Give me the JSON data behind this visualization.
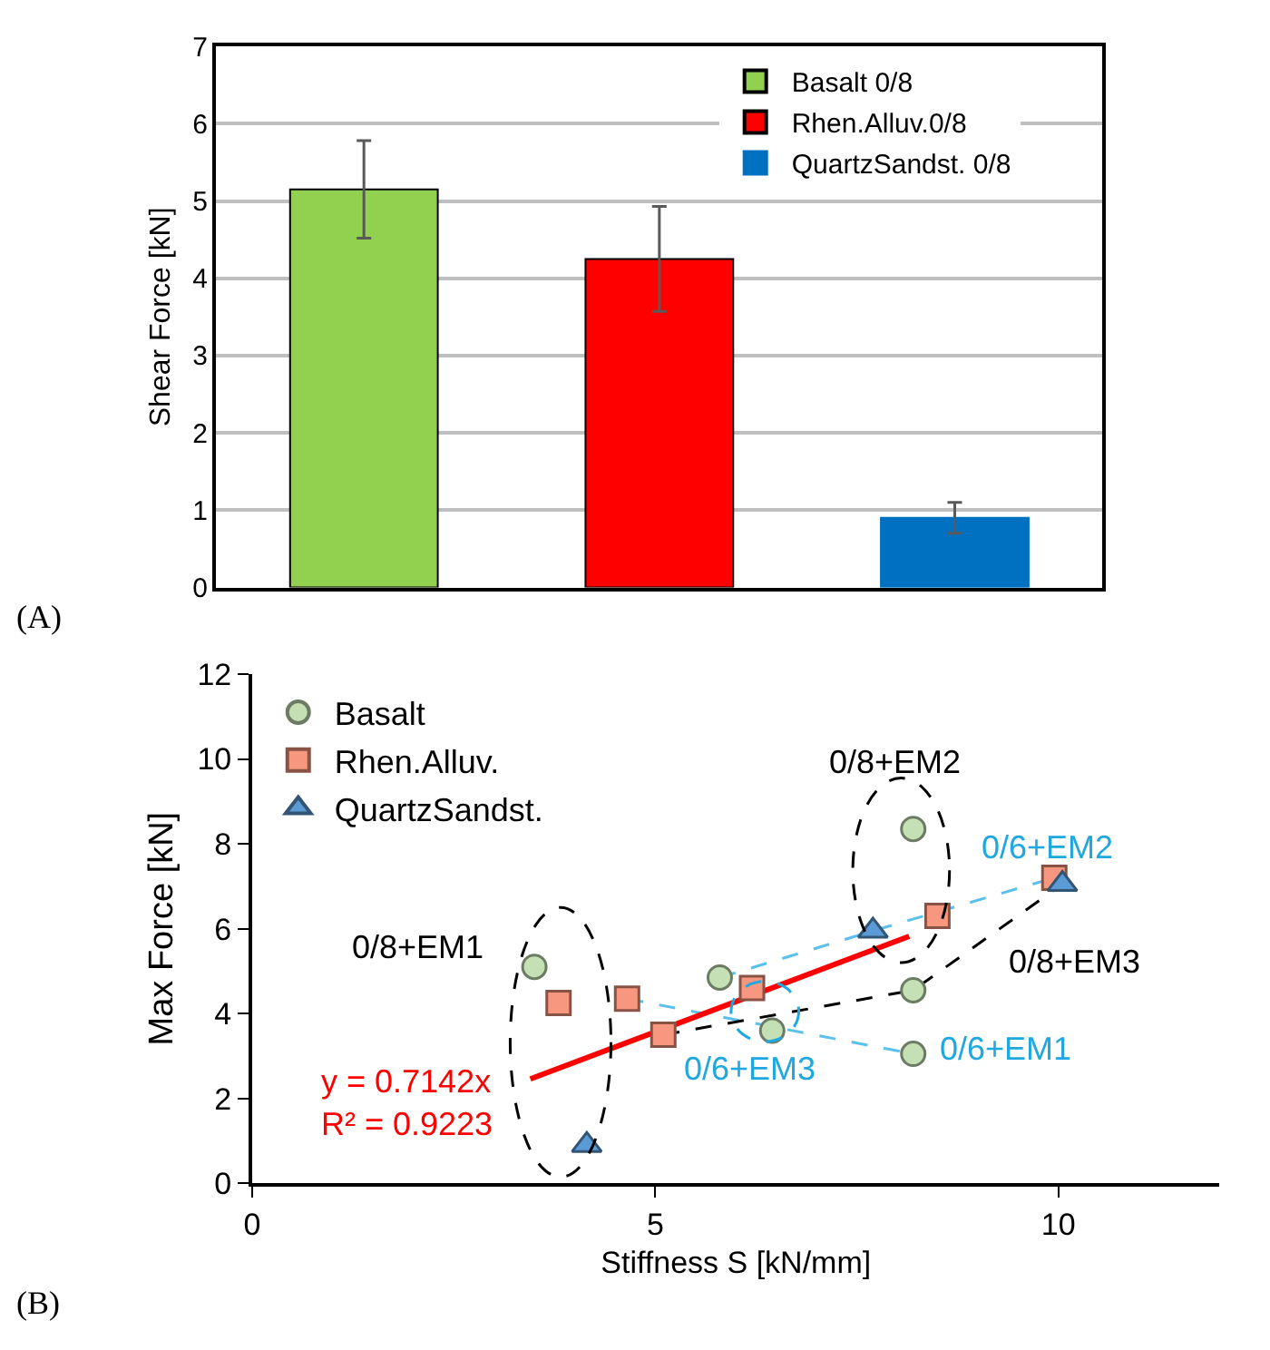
{
  "chart_data": [
    {
      "type": "bar",
      "ylabel": "Shear Force [kN]",
      "categories": [
        null,
        null,
        null
      ],
      "series": [
        {
          "name": "Basalt 0/8",
          "color": "#92d050",
          "values": [
            5.15,
            null,
            null
          ],
          "errors": [
            0.63,
            null,
            null
          ]
        },
        {
          "name": "Rhen.Alluv.0/8",
          "color": "#ff0000",
          "values": [
            null,
            4.25,
            null
          ],
          "errors": [
            null,
            0.68,
            null
          ]
        },
        {
          "name": "QuartzSandst. 0/8",
          "color": "#0070c0",
          "values": [
            null,
            null,
            0.9
          ],
          "errors": [
            null,
            null,
            0.2
          ]
        }
      ],
      "ylim": [
        0,
        7
      ],
      "yticks": [
        0,
        1,
        2,
        3,
        4,
        5,
        6,
        7
      ],
      "grid": "y",
      "legend": "top right",
      "annotations": [
        "(A)"
      ]
    },
    {
      "type": "scatter",
      "xlabel": "Stiffness S [kN/mm]",
      "ylabel": "Max Force [kN]",
      "series": [
        {
          "type": "line",
          "color": "#5bc0eb",
          "line_style": "dashed",
          "marker": "none",
          "x": [
            5.8,
            7.7,
            9.95
          ],
          "values": [
            4.85,
            5.95,
            7.2
          ]
        },
        {
          "type": "line",
          "color": "#5bc0eb",
          "line_style": "dashed",
          "marker": "none",
          "x": [
            4.65,
            8.2
          ],
          "values": [
            4.35,
            3.05
          ]
        },
        {
          "type": "line",
          "color": "#000000",
          "line_style": "dashed",
          "marker": "none",
          "x": [
            5.1,
            8.2,
            10.05
          ],
          "values": [
            3.5,
            4.55,
            7.05
          ]
        },
        {
          "type": "line",
          "color": "#ff0000",
          "line_style": "solid",
          "marker": "none",
          "x": [
            3.45,
            8.15
          ],
          "values": [
            2.46,
            5.82
          ]
        },
        {
          "name": "Basalt",
          "color": "#c5e0b4",
          "marker": "circle",
          "x": [
            3.5,
            5.8,
            6.45,
            8.2,
            8.2,
            8.2
          ],
          "values": [
            5.1,
            4.85,
            3.6,
            8.35,
            4.55,
            3.05
          ]
        },
        {
          "name": "Rhen.Alluv.",
          "color": "#f8977f",
          "marker": "square",
          "x": [
            3.8,
            4.65,
            5.1,
            6.2,
            8.5,
            9.95
          ],
          "values": [
            4.25,
            4.35,
            3.5,
            4.6,
            6.3,
            7.2
          ]
        },
        {
          "name": "QuartzSandst.",
          "color": "#5b9bd5",
          "marker": "triangle",
          "x": [
            4.15,
            7.7,
            10.05
          ],
          "values": [
            0.9,
            5.95,
            7.05
          ]
        }
      ],
      "xlim": [
        0,
        12
      ],
      "xticks": [
        0,
        5,
        10
      ],
      "ylim": [
        0,
        12
      ],
      "yticks": [
        0,
        2,
        4,
        6,
        8,
        10,
        12
      ],
      "legend": "top left",
      "annotations": [
        "(B)",
        "0/8+EM1",
        "0/8+EM2",
        "0/6+EM2",
        "0/8+EM3",
        "0/6+EM1",
        "0/6+EM3",
        "y = 0.7142x\nR² = 0.9223"
      ]
    }
  ]
}
